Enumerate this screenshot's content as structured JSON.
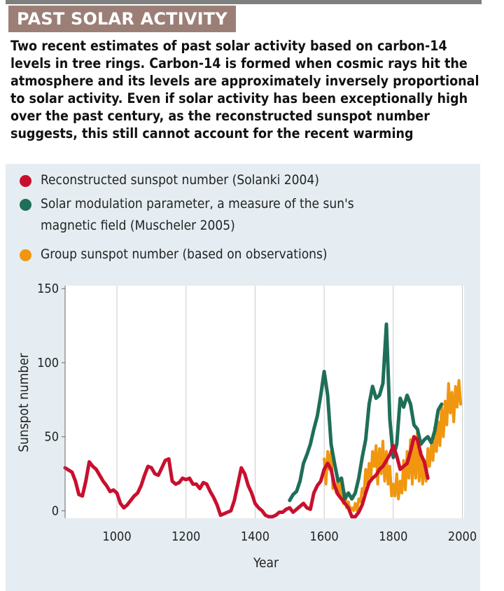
{
  "header": {
    "title": "PAST SOLAR ACTIVITY",
    "description": "Two recent estimates of past solar activity based on carbon-14\nlevels in tree rings. Carbon-14 is formed when cosmic rays hit the\natmosphere and its levels are approximately inversely proportional\nto solar activity. Even if solar activity has been exceptionally high\nover the past century, as the reconstructed sunspot number\nsuggests, this still cannot account for the recent warming"
  },
  "legend": [
    {
      "label": "Reconstructed sunspot number (Solanki 2004)",
      "color": "#c8102e"
    },
    {
      "label": "Solar modulation parameter, a measure of the sun's\nmagnetic field (Muscheler 2005)",
      "color": "#1e6e58"
    },
    {
      "label": "Group sunspot number (based on observations)",
      "color": "#f0960f"
    }
  ],
  "chart_data": {
    "type": "line",
    "title": "",
    "xlabel": "Year",
    "ylabel": "Sunspot number",
    "xlim": [
      850,
      2005
    ],
    "ylim": [
      -5,
      152
    ],
    "x_ticks": [
      1000,
      1200,
      1400,
      1600,
      1800,
      2000
    ],
    "y_ticks": [
      0,
      50,
      100,
      150
    ],
    "grid": "vertical",
    "series": [
      {
        "name": "Reconstructed sunspot number (Solanki 2004)",
        "color": "#c8102e",
        "x": [
          850,
          870,
          880,
          890,
          900,
          910,
          920,
          930,
          940,
          950,
          960,
          970,
          980,
          990,
          1000,
          1010,
          1020,
          1030,
          1040,
          1050,
          1060,
          1070,
          1080,
          1090,
          1100,
          1110,
          1120,
          1130,
          1140,
          1150,
          1160,
          1170,
          1180,
          1190,
          1200,
          1210,
          1220,
          1230,
          1240,
          1250,
          1260,
          1270,
          1280,
          1290,
          1300,
          1310,
          1320,
          1330,
          1340,
          1350,
          1360,
          1370,
          1380,
          1390,
          1400,
          1410,
          1420,
          1430,
          1440,
          1450,
          1460,
          1470,
          1480,
          1490,
          1500,
          1510,
          1520,
          1530,
          1540,
          1550,
          1560,
          1570,
          1580,
          1590,
          1600,
          1610,
          1620,
          1630,
          1640,
          1650,
          1660,
          1670,
          1680,
          1690,
          1700,
          1710,
          1720,
          1730,
          1740,
          1750,
          1760,
          1770,
          1780,
          1790,
          1800,
          1810,
          1820,
          1830,
          1840,
          1850,
          1860,
          1870,
          1880,
          1890,
          1900
        ],
        "y": [
          29,
          26,
          20,
          11,
          10,
          20,
          33,
          30,
          28,
          24,
          20,
          17,
          13,
          14,
          12,
          5,
          2,
          4,
          7,
          10,
          12,
          17,
          24,
          30,
          29,
          25,
          24,
          29,
          34,
          35,
          20,
          18,
          19,
          22,
          21,
          22,
          18,
          18,
          15,
          19,
          18,
          13,
          9,
          4,
          -3,
          -2,
          -1,
          0,
          7,
          18,
          29,
          25,
          17,
          12,
          5,
          2,
          0,
          -3,
          -4,
          -4,
          -3,
          -1,
          -1,
          1,
          2,
          -1,
          1,
          3,
          5,
          2,
          1,
          12,
          17,
          20,
          28,
          32,
          28,
          17,
          11,
          8,
          5,
          2,
          -4,
          -4,
          -1,
          4,
          12,
          19,
          22,
          24,
          28,
          30,
          34,
          38,
          44,
          37,
          28,
          30,
          32,
          40,
          50,
          48,
          38,
          33,
          22
        ]
      },
      {
        "name": "Solar modulation parameter, a measure of the sun's magnetic field (Muscheler 2005)",
        "color": "#1e6e58",
        "x": [
          1500,
          1510,
          1520,
          1530,
          1540,
          1550,
          1560,
          1570,
          1580,
          1590,
          1600,
          1610,
          1620,
          1630,
          1640,
          1650,
          1660,
          1670,
          1680,
          1690,
          1700,
          1710,
          1720,
          1730,
          1740,
          1750,
          1760,
          1770,
          1780,
          1790,
          1800,
          1810,
          1820,
          1830,
          1840,
          1850,
          1860,
          1870,
          1880,
          1890,
          1900,
          1910,
          1920,
          1930,
          1940
        ],
        "y": [
          7,
          11,
          13,
          20,
          32,
          38,
          45,
          55,
          64,
          78,
          94,
          78,
          45,
          32,
          20,
          22,
          8,
          12,
          8,
          12,
          22,
          36,
          48,
          72,
          84,
          76,
          78,
          86,
          126,
          62,
          36,
          45,
          76,
          70,
          78,
          72,
          58,
          55,
          45,
          48,
          50,
          46,
          54,
          68,
          72
        ]
      },
      {
        "name": "Group sunspot number (based on observations)",
        "color": "#f0960f",
        "x": [
          1600,
          1605,
          1610,
          1615,
          1620,
          1625,
          1630,
          1635,
          1640,
          1645,
          1650,
          1655,
          1660,
          1665,
          1670,
          1675,
          1680,
          1685,
          1690,
          1695,
          1700,
          1705,
          1710,
          1715,
          1720,
          1725,
          1730,
          1735,
          1740,
          1745,
          1750,
          1755,
          1760,
          1765,
          1770,
          1775,
          1780,
          1785,
          1790,
          1795,
          1800,
          1805,
          1810,
          1815,
          1820,
          1825,
          1830,
          1835,
          1840,
          1845,
          1850,
          1855,
          1860,
          1865,
          1870,
          1875,
          1880,
          1885,
          1890,
          1895,
          1900,
          1905,
          1910,
          1915,
          1920,
          1925,
          1930,
          1935,
          1940,
          1945,
          1950,
          1955,
          1960,
          1965,
          1970,
          1975,
          1980,
          1985,
          1990,
          1995
        ],
        "y": [
          35,
          18,
          40,
          28,
          40,
          15,
          18,
          12,
          22,
          10,
          20,
          5,
          12,
          2,
          6,
          0,
          2,
          0,
          5,
          0,
          8,
          6,
          15,
          12,
          28,
          18,
          32,
          22,
          40,
          30,
          44,
          18,
          42,
          25,
          47,
          20,
          40,
          18,
          30,
          10,
          18,
          10,
          25,
          8,
          20,
          12,
          34,
          14,
          40,
          22,
          48,
          18,
          50,
          22,
          54,
          20,
          40,
          18,
          34,
          20,
          42,
          30,
          44,
          34,
          56,
          40,
          60,
          44,
          70,
          50,
          74,
          58,
          86,
          66,
          80,
          60,
          84,
          70,
          88,
          72
        ]
      }
    ]
  }
}
